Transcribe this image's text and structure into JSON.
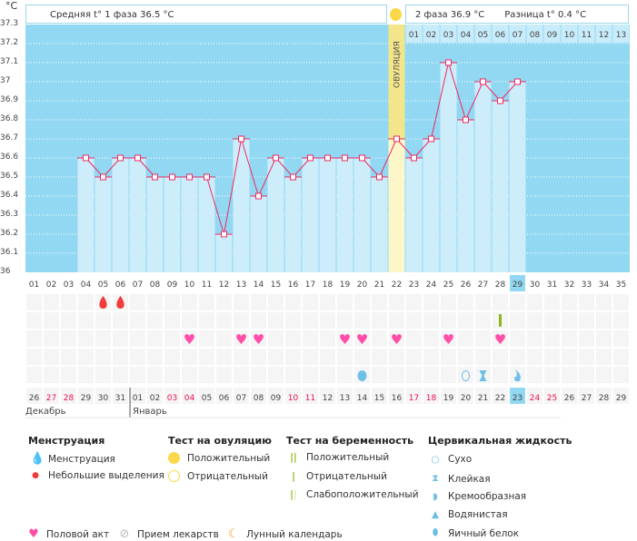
{
  "unit_label": "°C",
  "header": {
    "phase1_label": "Средняя t° 1 фаза 36.5 °C",
    "phase2_label": "2 фаза 36.9 °C",
    "diff_label": "Разница t° 0.4 °C",
    "ovulation_label": "ОВУЛЯЦИЯ"
  },
  "colors": {
    "plot_bg": "#92d8f2",
    "bar": "#cdedfb",
    "line": "#ee2a62",
    "ovulation": "#f2e58a",
    "ovulation_low": "#fdf6c8",
    "highlight": "#92d8f2",
    "weekend": "#e8134f",
    "heart": "#ff4fa8",
    "drop": "#f23b3b",
    "green": "#8ab81a",
    "fluid": "#6dbfe8"
  },
  "chart_data": {
    "type": "line",
    "ylabel": "°C",
    "ylim": [
      36,
      37.3
    ],
    "yticks": [
      "37.3",
      "37.2",
      "37.1",
      "37",
      "36.9",
      "36.8",
      "36.7",
      "36.6",
      "36.5",
      "36.4",
      "36.3",
      "36.2",
      "36.1",
      "36"
    ],
    "ytick_values": [
      37.3,
      37.2,
      37.1,
      37,
      36.9,
      36.8,
      36.7,
      36.6,
      36.5,
      36.4,
      36.3,
      36.2,
      36.1,
      36
    ],
    "cycle_days": [
      "01",
      "02",
      "03",
      "04",
      "05",
      "06",
      "07",
      "08",
      "09",
      "10",
      "11",
      "12",
      "13",
      "14",
      "15",
      "16",
      "17",
      "18",
      "19",
      "20",
      "21",
      "22",
      "23",
      "24",
      "25",
      "26",
      "27",
      "28",
      "29",
      "30",
      "31",
      "32",
      "33",
      "34",
      "35"
    ],
    "temperatures": [
      null,
      null,
      null,
      36.6,
      36.5,
      36.6,
      36.6,
      36.5,
      36.5,
      36.5,
      36.5,
      36.2,
      36.7,
      36.4,
      36.6,
      36.5,
      36.6,
      36.6,
      36.6,
      36.6,
      36.5,
      36.7,
      36.6,
      36.7,
      37.1,
      36.8,
      37.0,
      36.9,
      37.0,
      null,
      null,
      null,
      null,
      null,
      null
    ],
    "ovulation_day": 22,
    "current_day": 29,
    "phase2_days": [
      "01",
      "02",
      "03",
      "04",
      "05",
      "06",
      "07",
      "08",
      "09",
      "10",
      "11",
      "12",
      "13"
    ]
  },
  "dates": [
    "26",
    "27",
    "28",
    "29",
    "30",
    "31",
    "01",
    "02",
    "03",
    "04",
    "05",
    "06",
    "07",
    "08",
    "09",
    "10",
    "11",
    "12",
    "13",
    "14",
    "15",
    "16",
    "17",
    "18",
    "19",
    "20",
    "21",
    "22",
    "23",
    "24",
    "25",
    "26",
    "27",
    "28",
    "29"
  ],
  "weekend_idx": [
    1,
    2,
    8,
    9,
    15,
    16,
    22,
    23,
    29,
    30
  ],
  "months": [
    "Декабрь",
    "Январь"
  ],
  "markers": {
    "menstruation": [
      5,
      6
    ],
    "pregnancy_test_negative": [
      28
    ],
    "intercourse": [
      10,
      13,
      14,
      19,
      20,
      22,
      25,
      28
    ],
    "fluid_egg_white": [
      20
    ],
    "fluid_dry": [
      26
    ],
    "fluid_sticky": [
      27
    ],
    "fluid_creamy": [
      29
    ]
  },
  "legend": {
    "menstruation": {
      "title": "Менструация",
      "items": [
        "Менструация",
        "Небольшие выделения"
      ]
    },
    "ovulation_test": {
      "title": "Тест на овуляцию",
      "items": [
        "Положительный",
        "Отрицательный"
      ]
    },
    "pregnancy_test": {
      "title": "Тест на беременность",
      "items": [
        "Положительный",
        "Отрицательный",
        "Слабоположительный"
      ]
    },
    "cervical": {
      "title": "Цервикальная жидкость",
      "items": [
        "Сухо",
        "Клейкая",
        "Кремообразная",
        "Водянистая",
        "Яичный белок"
      ]
    },
    "other": [
      "Половой акт",
      "Прием лекарств",
      "Лунный календарь"
    ]
  }
}
